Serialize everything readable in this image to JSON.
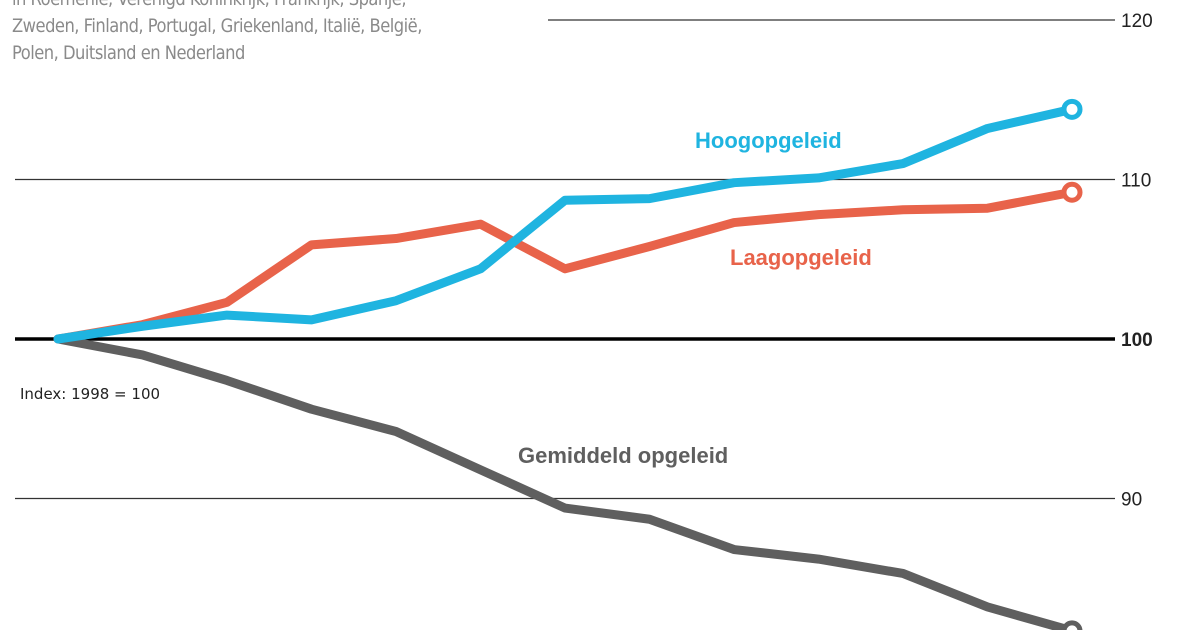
{
  "subtitle_lines": [
    "in Roemenië, Verenigd Koninkrijk, Frankrijk, Spanje,",
    "Zweden, Finland, Portugal, Griekenland, Italië, België,",
    "Polen, Duitsland en Nederland"
  ],
  "chart_data": {
    "type": "line",
    "note": "Index: 1998 = 100",
    "ylim": [
      80,
      122
    ],
    "yticks": [
      120,
      110,
      100,
      90
    ],
    "y_axis_position": "right",
    "grid": true,
    "series": [
      {
        "name": "Hoogopgeleid",
        "color": "#1fb4e0",
        "values": [
          100,
          100.8,
          101.5,
          101.2,
          102.4,
          104.4,
          108.7,
          108.8,
          109.8,
          110.1,
          111.0,
          113.2,
          114.4
        ]
      },
      {
        "name": "Laagopgeleid",
        "color": "#e8634a",
        "values": [
          100,
          100.9,
          102.3,
          105.9,
          106.3,
          107.2,
          104.4,
          105.8,
          107.3,
          107.8,
          108.1,
          108.2,
          109.2
        ]
      },
      {
        "name": "Gemiddeld opgeleid",
        "color": "#5f5f5f",
        "values": [
          100,
          99.0,
          97.4,
          95.6,
          94.2,
          91.8,
          89.4,
          88.7,
          86.8,
          86.2,
          85.3,
          83.2,
          81.7
        ]
      }
    ]
  }
}
